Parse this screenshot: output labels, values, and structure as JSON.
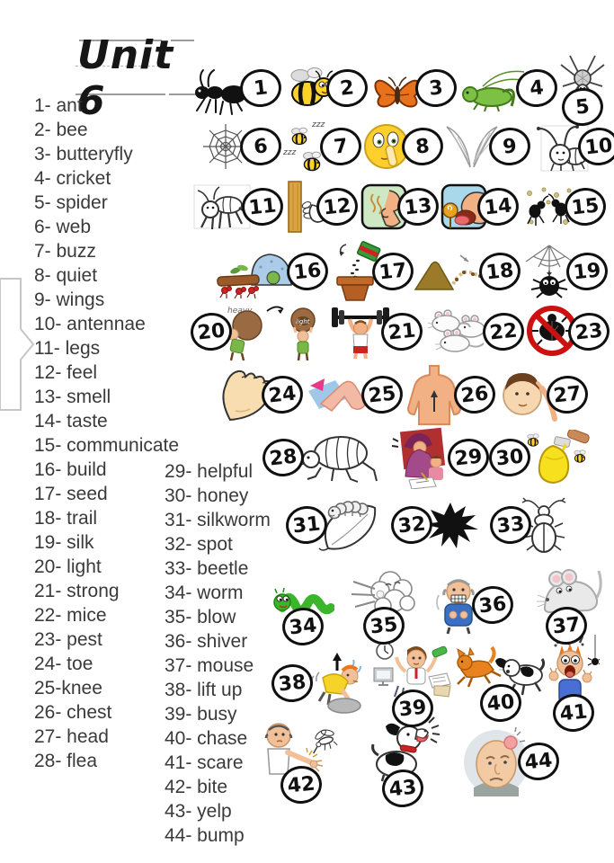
{
  "title": "Unit 6",
  "word_list_left": [
    "1- ant",
    "2- bee",
    "3- butteryfly",
    "4- cricket",
    "5- spider",
    "6- web",
    "7- buzz",
    "8- quiet",
    "9- wings",
    "10- antennae",
    "11- legs",
    "12- feel",
    "13- smell",
    "14- taste",
    "15- communicate",
    "16- build",
    "17- seed",
    "18- trail",
    "19- silk",
    "20- light",
    "21- strong",
    "22- mice",
    "23- pest",
    "24- toe",
    "25-knee",
    "26- chest",
    "27- head",
    "28- flea"
  ],
  "word_list_right": [
    "29- helpful",
    "30- honey",
    "31- silkworm",
    "32- spot",
    "33- beetle",
    "34- worm",
    "35- blow",
    "36- shiver",
    "37- mouse",
    "38- lift up",
    "39- busy",
    "40- chase",
    "41- scare",
    "42- bite",
    "43- yelp",
    "44- bump"
  ],
  "picture_labels": {
    "zzz": "zzz",
    "heavy": "heavy",
    "light": "light"
  },
  "pictures": [
    {
      "number": "1",
      "word": "ant",
      "icon": "ant-icon"
    },
    {
      "number": "2",
      "word": "bee",
      "icon": "bee-icon"
    },
    {
      "number": "3",
      "word": "butterfly",
      "icon": "butterfly-icon"
    },
    {
      "number": "4",
      "word": "cricket",
      "icon": "cricket-icon"
    },
    {
      "number": "5",
      "word": "spider",
      "icon": "spider-icon"
    },
    {
      "number": "6",
      "word": "web",
      "icon": "spider-web-icon"
    },
    {
      "number": "7",
      "word": "buzz",
      "icon": "buzzing-bees-icon"
    },
    {
      "number": "8",
      "word": "quiet",
      "icon": "quiet-shh-face-icon"
    },
    {
      "number": "9",
      "word": "wings",
      "icon": "wings-icon"
    },
    {
      "number": "10",
      "word": "antennae",
      "icon": "antennae-icon"
    },
    {
      "number": "11",
      "word": "legs",
      "icon": "insect-legs-icon"
    },
    {
      "number": "12",
      "word": "feel",
      "icon": "hand-feeling-icon"
    },
    {
      "number": "13",
      "word": "smell",
      "icon": "smell-nose-icon"
    },
    {
      "number": "14",
      "word": "taste",
      "icon": "taste-tongue-icon"
    },
    {
      "number": "15",
      "word": "communicate",
      "icon": "ants-communicating-icon"
    },
    {
      "number": "16",
      "word": "build",
      "icon": "ants-building-icon"
    },
    {
      "number": "17",
      "word": "seed",
      "icon": "seed-pot-icon"
    },
    {
      "number": "18",
      "word": "trail",
      "icon": "ant-trail-icon"
    },
    {
      "number": "19",
      "word": "silk",
      "icon": "spider-silk-icon"
    },
    {
      "number": "20",
      "word": "light",
      "icon": "heavy-light-icon"
    },
    {
      "number": "21",
      "word": "strong",
      "icon": "strongman-icon"
    },
    {
      "number": "22",
      "word": "mice",
      "icon": "mice-icon"
    },
    {
      "number": "23",
      "word": "pest",
      "icon": "no-pest-icon"
    },
    {
      "number": "24",
      "word": "toe",
      "icon": "foot-toe-icon"
    },
    {
      "number": "25",
      "word": "knee",
      "icon": "knee-icon"
    },
    {
      "number": "26",
      "word": "chest",
      "icon": "chest-icon"
    },
    {
      "number": "27",
      "word": "head",
      "icon": "head-icon"
    },
    {
      "number": "28",
      "word": "flea",
      "icon": "flea-icon"
    },
    {
      "number": "29",
      "word": "helpful",
      "icon": "helpful-icon"
    },
    {
      "number": "30",
      "word": "honey",
      "icon": "honey-pot-icon"
    },
    {
      "number": "31",
      "word": "silkworm",
      "icon": "silkworm-icon"
    },
    {
      "number": "32",
      "word": "spot",
      "icon": "spot-splat-icon"
    },
    {
      "number": "33",
      "word": "beetle",
      "icon": "beetle-icon"
    },
    {
      "number": "34",
      "word": "worm",
      "icon": "worm-icon"
    },
    {
      "number": "35",
      "word": "blow",
      "icon": "blowing-wind-icon"
    },
    {
      "number": "36",
      "word": "shiver",
      "icon": "shivering-man-icon"
    },
    {
      "number": "37",
      "word": "mouse",
      "icon": "mouse-icon"
    },
    {
      "number": "38",
      "word": "lift up",
      "icon": "lift-up-icon"
    },
    {
      "number": "39",
      "word": "busy",
      "icon": "busy-boy-icon"
    },
    {
      "number": "40",
      "word": "chase",
      "icon": "dog-chasing-cat-icon"
    },
    {
      "number": "41",
      "word": "scare",
      "icon": "scared-boy-icon"
    },
    {
      "number": "42",
      "word": "bite",
      "icon": "mosquito-bite-icon"
    },
    {
      "number": "43",
      "word": "yelp",
      "icon": "yelping-dog-icon"
    },
    {
      "number": "44",
      "word": "bump",
      "icon": "head-bump-icon"
    }
  ],
  "colors": {
    "text": "#3a3a3a",
    "badge_border": "#101010",
    "guide_line": "#9c9c9c",
    "page_background": "#ffffff"
  }
}
